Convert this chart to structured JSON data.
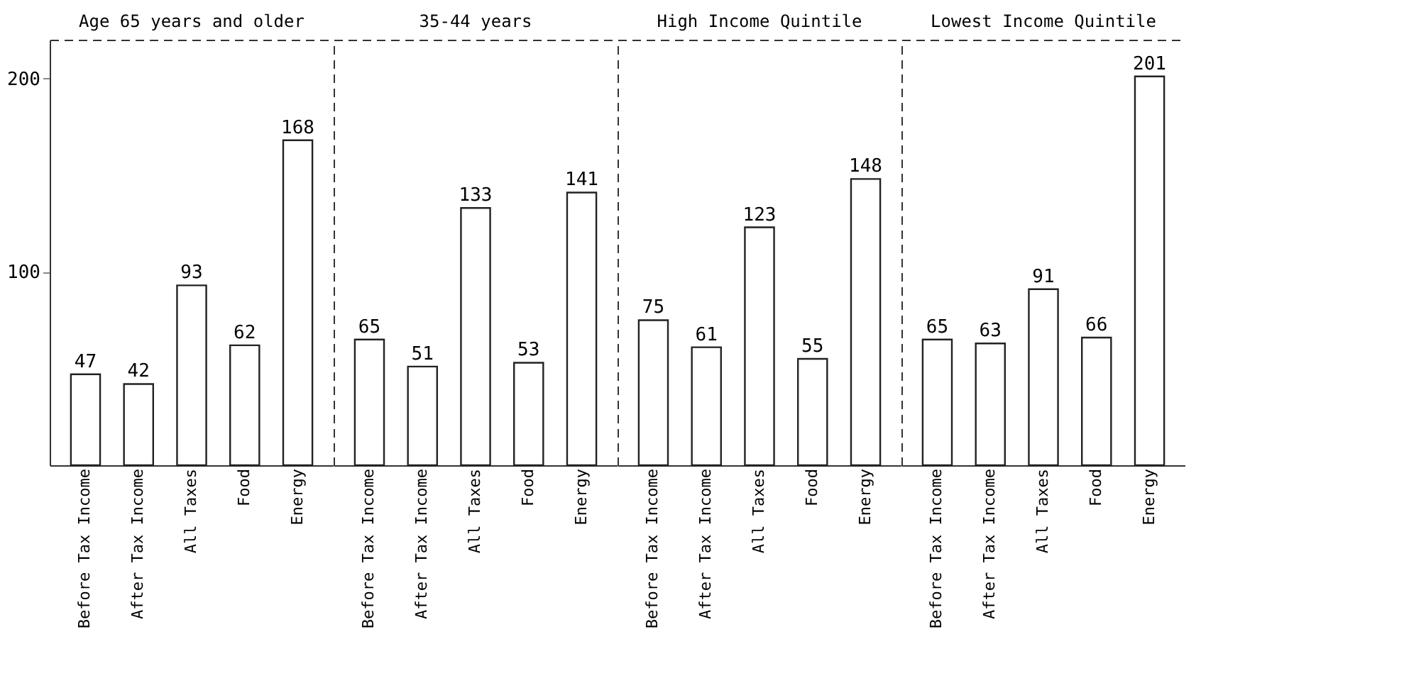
{
  "chart_data": [
    {
      "type": "bar",
      "title": "Age 65 years and older",
      "categories": [
        "Before Tax Income",
        "After Tax Income",
        "All Taxes",
        "Food",
        "Energy"
      ],
      "values": [
        47,
        42,
        93,
        62,
        168
      ],
      "color": "#ffffff",
      "ylim": [
        0,
        220
      ],
      "yticks": [
        100,
        200
      ],
      "data_labels": true,
      "grid": false
    },
    {
      "type": "bar",
      "title": "35-44 years",
      "categories": [
        "Before Tax Income",
        "After Tax Income",
        "All Taxes",
        "Food",
        "Energy"
      ],
      "values": [
        65,
        51,
        133,
        53,
        141
      ],
      "color": "#ffffff",
      "ylim": [
        0,
        220
      ],
      "data_labels": true,
      "grid": false,
      "tick_labels": "x"
    },
    {
      "type": "bar",
      "title": "High Income Quintile",
      "categories": [
        "Before Tax Income",
        "After Tax Income",
        "All Taxes",
        "Food",
        "Energy"
      ],
      "values": [
        75,
        61,
        123,
        55,
        148
      ],
      "color": "#ffffff",
      "ylim": [
        0,
        220
      ],
      "data_labels": true,
      "grid": false,
      "tick_labels": "x"
    },
    {
      "type": "bar",
      "title": "Lowest Income Quintile",
      "categories": [
        "Before Tax Income",
        "After Tax Income",
        "All Taxes",
        "Food",
        "Energy"
      ],
      "values": [
        65,
        63,
        91,
        66,
        201
      ],
      "color": "#ffffff",
      "ylim": [
        0,
        220
      ],
      "data_labels": true,
      "grid": false,
      "tick_labels": "x"
    }
  ]
}
